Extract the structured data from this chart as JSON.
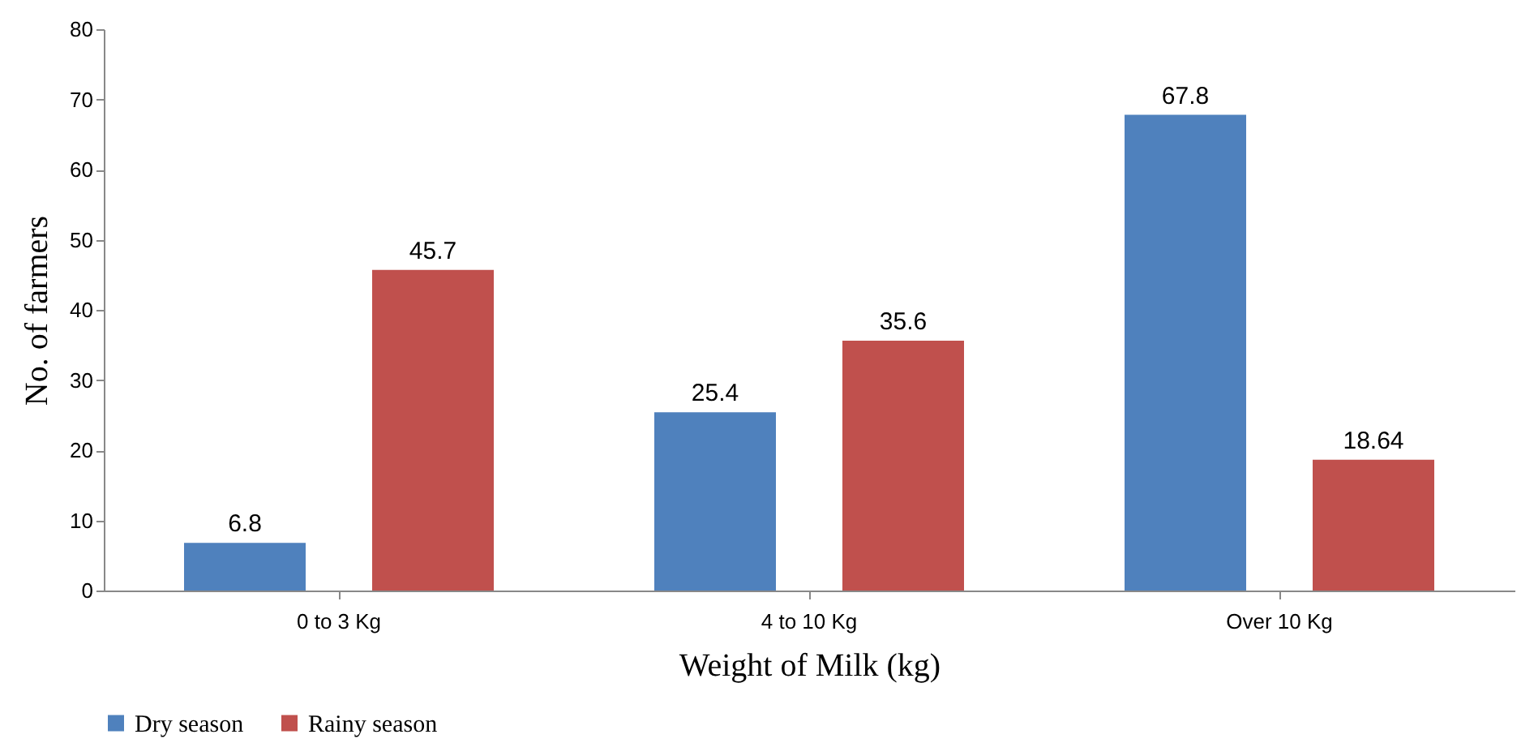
{
  "chart_data": {
    "type": "bar",
    "xlabel": "Weight of Milk (kg)",
    "ylabel": "No. of farmers",
    "categories": [
      "0 to 3 Kg",
      "4 to 10 Kg",
      "Over 10 Kg"
    ],
    "series": [
      {
        "name": "Dry season",
        "color": "#4f81bd",
        "values": [
          6.8,
          25.4,
          67.8
        ]
      },
      {
        "name": "Rainy season",
        "color": "#c0504d",
        "values": [
          45.7,
          35.6,
          18.64
        ]
      }
    ],
    "ylim": [
      0,
      80
    ],
    "yticks": [
      0,
      10,
      20,
      30,
      40,
      50,
      60,
      70,
      80
    ],
    "grid": false,
    "legend": "bottom",
    "data_labels": true
  }
}
